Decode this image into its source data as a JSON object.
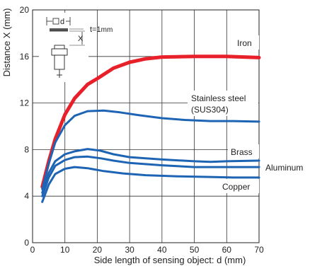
{
  "chart_data": {
    "type": "line",
    "title": "",
    "xlabel": "Side length of sensing object: d (mm)",
    "ylabel": "Distance X (mm)",
    "xlim": [
      0,
      70
    ],
    "ylim": [
      0,
      20
    ],
    "xticks": [
      0,
      10,
      20,
      30,
      40,
      50,
      60,
      70
    ],
    "yticks": [
      0,
      4,
      8,
      12,
      16,
      20
    ],
    "grid": true,
    "series": [
      {
        "name": "Iron",
        "color": "#e8202a",
        "points": [
          [
            3,
            4.8
          ],
          [
            5,
            7.0
          ],
          [
            7,
            8.9
          ],
          [
            10,
            11.0
          ],
          [
            13,
            12.4
          ],
          [
            17,
            13.6
          ],
          [
            20,
            14.1
          ],
          [
            25,
            15.0
          ],
          [
            30,
            15.5
          ],
          [
            35,
            15.8
          ],
          [
            40,
            15.95
          ],
          [
            50,
            16.0
          ],
          [
            60,
            16.0
          ],
          [
            70,
            15.9
          ]
        ]
      },
      {
        "name": "Stainless steel (SUS304)",
        "color": "#1e64b4",
        "points": [
          [
            3,
            4.6
          ],
          [
            5,
            6.8
          ],
          [
            7,
            8.6
          ],
          [
            10,
            10.1
          ],
          [
            13,
            10.9
          ],
          [
            17,
            11.3
          ],
          [
            22,
            11.35
          ],
          [
            27,
            11.2
          ],
          [
            33,
            10.95
          ],
          [
            40,
            10.7
          ],
          [
            47,
            10.55
          ],
          [
            55,
            10.45
          ],
          [
            62,
            10.45
          ],
          [
            70,
            10.4
          ]
        ]
      },
      {
        "name": "Brass",
        "color": "#1e64b4",
        "points": [
          [
            3,
            4.3
          ],
          [
            5,
            6.0
          ],
          [
            7,
            7.0
          ],
          [
            10,
            7.6
          ],
          [
            13,
            7.85
          ],
          [
            17,
            8.05
          ],
          [
            21,
            7.9
          ],
          [
            25,
            7.6
          ],
          [
            30,
            7.35
          ],
          [
            40,
            7.15
          ],
          [
            50,
            7.0
          ],
          [
            55,
            6.95
          ],
          [
            60,
            7.0
          ],
          [
            70,
            7.05
          ]
        ]
      },
      {
        "name": "Aluminum",
        "color": "#1e64b4",
        "points": [
          [
            3,
            4.0
          ],
          [
            5,
            5.6
          ],
          [
            7,
            6.6
          ],
          [
            10,
            7.1
          ],
          [
            13,
            7.35
          ],
          [
            17,
            7.4
          ],
          [
            21,
            7.25
          ],
          [
            25,
            7.05
          ],
          [
            30,
            6.85
          ],
          [
            40,
            6.65
          ],
          [
            50,
            6.5
          ],
          [
            60,
            6.5
          ],
          [
            70,
            6.5
          ]
        ]
      },
      {
        "name": "Copper",
        "color": "#1e64b4",
        "points": [
          [
            3,
            3.5
          ],
          [
            5,
            5.0
          ],
          [
            7,
            5.9
          ],
          [
            10,
            6.35
          ],
          [
            13,
            6.5
          ],
          [
            17,
            6.4
          ],
          [
            22,
            6.15
          ],
          [
            28,
            5.95
          ],
          [
            35,
            5.8
          ],
          [
            45,
            5.7
          ],
          [
            55,
            5.65
          ],
          [
            62,
            5.6
          ],
          [
            70,
            5.6
          ]
        ]
      }
    ],
    "labels": {
      "iron": "Iron",
      "stainless_line1": "Stainless steel",
      "stainless_line2": "(SUS304)",
      "brass": "Brass",
      "aluminum": "Aluminum",
      "copper": "Copper"
    },
    "inset": {
      "d_label": "d",
      "x_label": "X",
      "t_label": "t=1",
      "t_unit": "mm"
    }
  }
}
